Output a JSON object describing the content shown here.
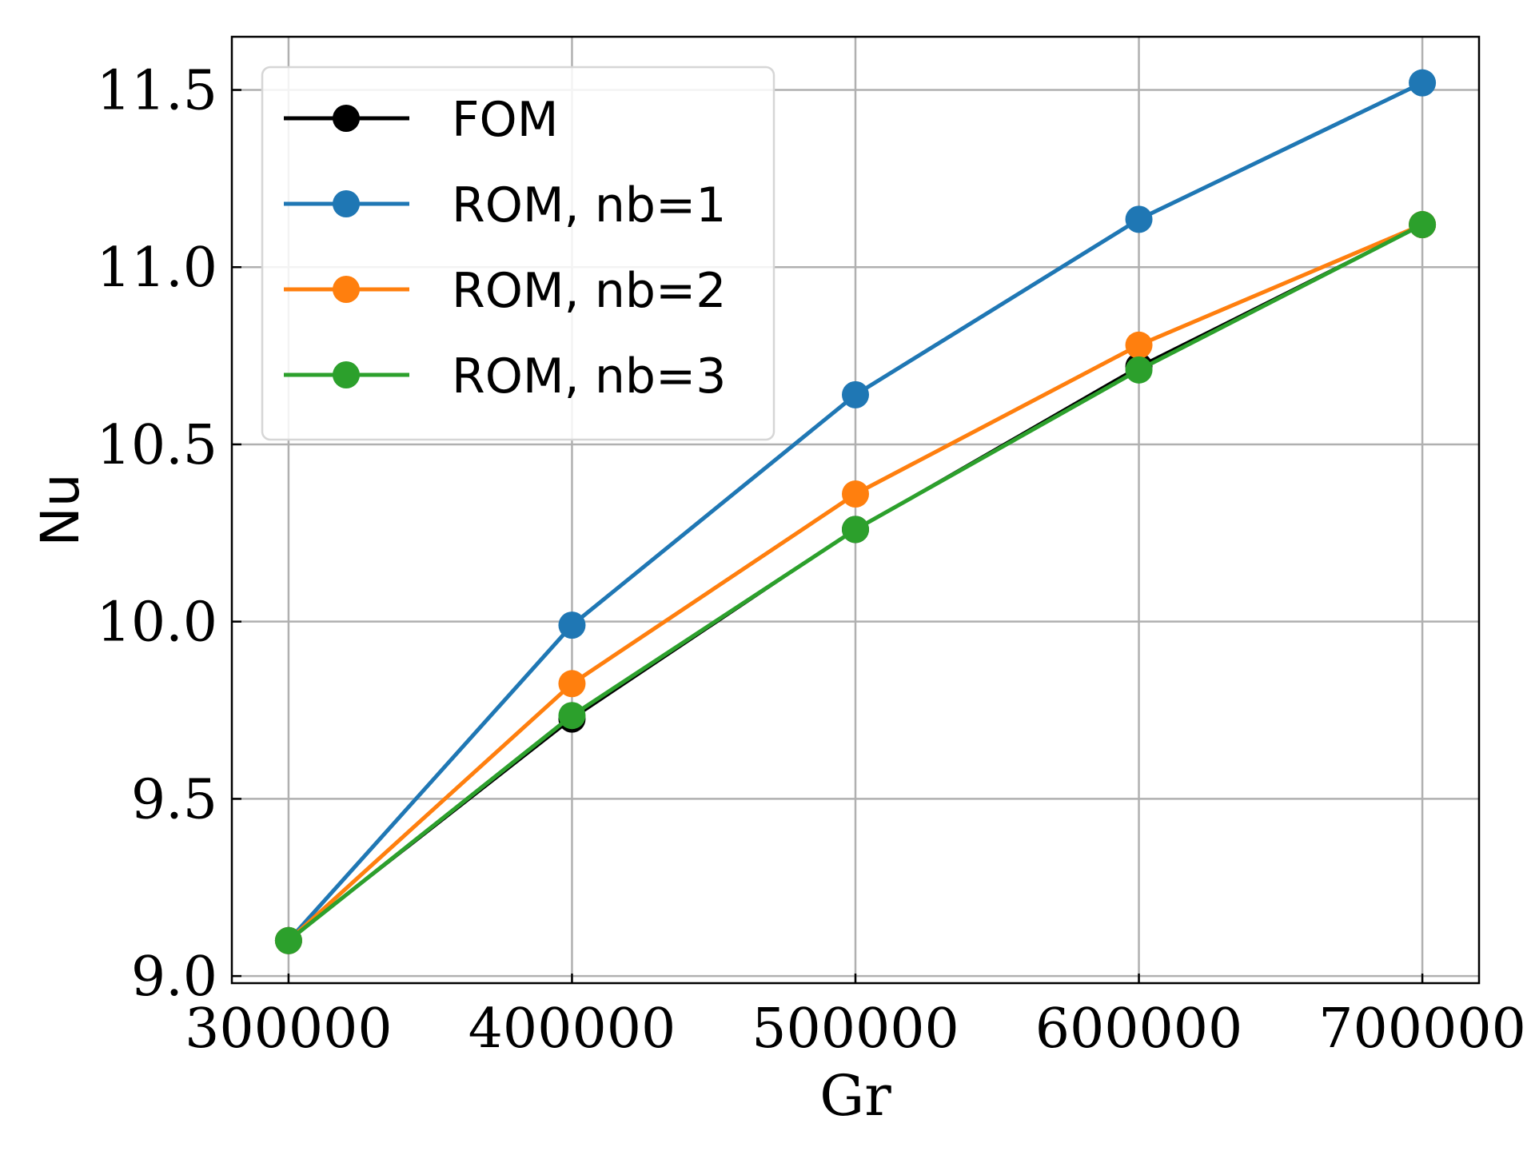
{
  "chart_data": {
    "type": "line",
    "xlabel": "Gr",
    "ylabel": "Nu",
    "x": [
      300000,
      400000,
      500000,
      600000,
      700000
    ],
    "xticks": [
      "300000",
      "400000",
      "500000",
      "600000",
      "700000"
    ],
    "yticks": [
      "9.0",
      "9.5",
      "10.0",
      "10.5",
      "11.0",
      "11.5"
    ],
    "xlim": [
      280000,
      720000
    ],
    "ylim": [
      8.98,
      11.65
    ],
    "grid": true,
    "legend_position": "upper-left",
    "series": [
      {
        "name": "FOM",
        "color": "#000000",
        "values": [
          9.1,
          9.725,
          10.26,
          10.72,
          11.12
        ]
      },
      {
        "name": "ROM, nb=1",
        "color": "#1f77b4",
        "values": [
          9.1,
          9.99,
          10.64,
          11.135,
          11.52
        ]
      },
      {
        "name": "ROM, nb=2",
        "color": "#ff7f0e",
        "values": [
          9.1,
          9.825,
          10.36,
          10.78,
          11.12
        ]
      },
      {
        "name": "ROM, nb=3",
        "color": "#2ca02c",
        "values": [
          9.1,
          9.735,
          10.26,
          10.71,
          11.12
        ]
      }
    ]
  }
}
